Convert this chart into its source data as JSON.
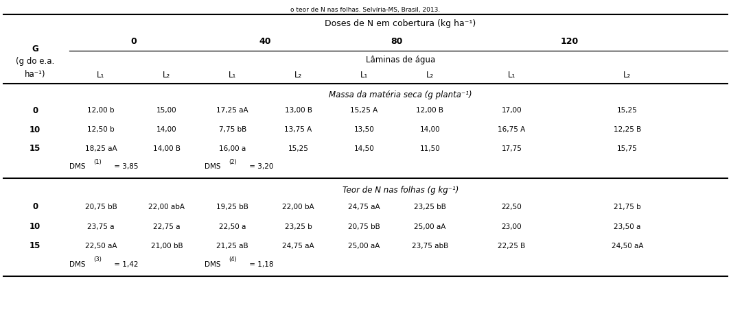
{
  "top_caption": "o teor de N nas folhas. Selvíria-MS, Brasil, 2013.",
  "header_doses": "Doses de N em cobertura (kg ha⁻¹)",
  "dose_labels": [
    "0",
    "40",
    "80",
    "120"
  ],
  "laminas_label": "Lâminas de água",
  "G_label_lines": [
    "G",
    "(g do e.a.",
    "ha⁻¹)"
  ],
  "L_labels": [
    "L₁",
    "L₂",
    "L₁",
    "L₂",
    "L₁",
    "L₂",
    "L₁",
    "L₂"
  ],
  "section1_title": "Massa da matéria seca (g planta⁻¹)",
  "section1_rows": [
    {
      "g": "0",
      "vals": [
        "12,00 b",
        "15,00",
        "17,25 aA",
        "13,00 B",
        "15,25 A",
        "12,00 B",
        "17,00",
        "15,25"
      ]
    },
    {
      "g": "10",
      "vals": [
        "12,50 b",
        "14,00",
        "7,75 bB",
        "13,75 A",
        "13,50",
        "14,00",
        "16,75 A",
        "12,25 B"
      ]
    },
    {
      "g": "15",
      "vals": [
        "18,25 aA",
        "14,00 B",
        "16,00 a",
        "15,25",
        "14,50",
        "11,50",
        "17,75",
        "15,75"
      ]
    }
  ],
  "section1_dms1": "DMS",
  "section1_dms1_sup": "(1)",
  "section1_dms1_val": " = 3,85",
  "section1_dms2": "DMS",
  "section1_dms2_sup": "(2)",
  "section1_dms2_val": " = 3,20",
  "section2_title": "Teor de N nas folhas (g kg⁻¹)",
  "section2_rows": [
    {
      "g": "0",
      "vals": [
        "20,75 bB",
        "22,00 abA",
        "19,25 bB",
        "22,00 bA",
        "24,75 aA",
        "23,25 bB",
        "22,50",
        "21,75 b"
      ]
    },
    {
      "g": "10",
      "vals": [
        "23,75 a",
        "22,75 a",
        "22,50 a",
        "23,25 b",
        "20,75 bB",
        "25,00 aA",
        "23,00",
        "23,50 a"
      ]
    },
    {
      "g": "15",
      "vals": [
        "22,50 aA",
        "21,00 bB",
        "21,25 aB",
        "24,75 aA",
        "25,00 aA",
        "23,75 abB",
        "22,25 B",
        "24,50 aA"
      ]
    }
  ],
  "section2_dms3": "DMS",
  "section2_dms3_sup": "(3)",
  "section2_dms3_val": " = 1,42",
  "section2_dms4": "DMS",
  "section2_dms4_sup": "(4)",
  "section2_dms4_val": " = 1,18",
  "figsize": [
    10.65,
    4.61
  ],
  "dpi": 100,
  "fs_title": 9.0,
  "fs_data": 8.5,
  "fs_small": 7.5,
  "fs_sup": 6.0
}
